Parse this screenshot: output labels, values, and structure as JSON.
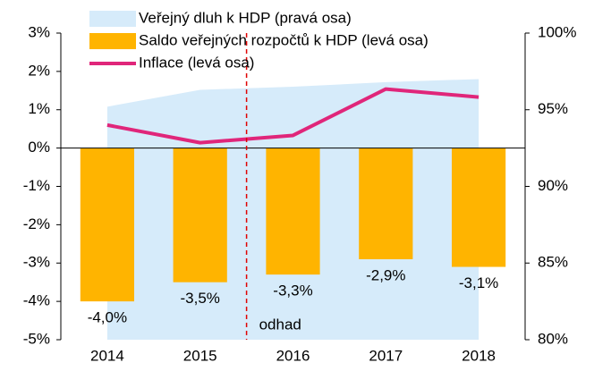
{
  "chart_data": {
    "type": "bar",
    "categories": [
      "2014",
      "2015",
      "2016",
      "2017",
      "2018"
    ],
    "series": [
      {
        "name": "Veřejný dluh k HDP (pravá osa)",
        "type": "area",
        "axis": "y2",
        "color": "#d6ebfa",
        "values": [
          95.2,
          96.3,
          96.5,
          96.8,
          97.0
        ]
      },
      {
        "name": "Saldo veřejných rozpočtů k HDP (levá osa)",
        "type": "bar",
        "color": "#ffb400",
        "values": [
          -4.0,
          -3.5,
          -3.3,
          -2.9,
          -3.1
        ],
        "value_labels": [
          "-4,0%",
          "-3,5%",
          "-3,3%",
          "-2,9%",
          "-3,1%"
        ]
      },
      {
        "name": "Inflace (levá osa)",
        "type": "line",
        "color": "#e0267a",
        "values": [
          0.6,
          0.14,
          0.33,
          1.54,
          1.33
        ]
      }
    ],
    "ylim": [
      -5,
      3
    ],
    "yticks": [
      {
        "value": -5,
        "label": "-5%"
      },
      {
        "value": -4,
        "label": "-4%"
      },
      {
        "value": -3,
        "label": "-3%"
      },
      {
        "value": -2,
        "label": "-2%"
      },
      {
        "value": -1,
        "label": "-1%"
      },
      {
        "value": 0,
        "label": "0%"
      },
      {
        "value": 1,
        "label": "1%"
      },
      {
        "value": 2,
        "label": "2%"
      },
      {
        "value": 3,
        "label": "3%"
      }
    ],
    "y2lim": [
      80,
      100
    ],
    "y2ticks": [
      {
        "value": 80,
        "label": "80%"
      },
      {
        "value": 85,
        "label": "85%"
      },
      {
        "value": 90,
        "label": "90%"
      },
      {
        "value": 95,
        "label": "95%"
      },
      {
        "value": 100,
        "label": "100%"
      }
    ],
    "annotation": "odhad",
    "annotation_color": "#e00000",
    "legend": "top"
  }
}
